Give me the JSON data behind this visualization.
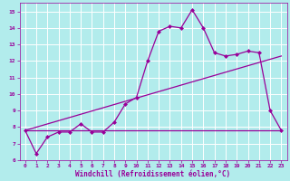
{
  "xlabel": "Windchill (Refroidissement éolien,°C)",
  "background_color": "#b2ecec",
  "grid_color": "#ffffff",
  "line_color": "#990099",
  "xlim": [
    -0.5,
    23.5
  ],
  "ylim": [
    6.0,
    15.5
  ],
  "yticks": [
    6,
    7,
    8,
    9,
    10,
    11,
    12,
    13,
    14,
    15
  ],
  "xticks": [
    0,
    1,
    2,
    3,
    4,
    5,
    6,
    7,
    8,
    9,
    10,
    11,
    12,
    13,
    14,
    15,
    16,
    17,
    18,
    19,
    20,
    21,
    22,
    23
  ],
  "curve1_x": [
    0,
    1,
    2,
    3,
    4,
    5,
    6,
    7,
    8,
    9,
    10,
    11,
    12,
    13,
    14,
    15,
    16,
    17,
    18,
    19,
    20,
    21,
    22,
    23
  ],
  "curve1_y": [
    7.8,
    6.4,
    7.4,
    7.7,
    7.7,
    8.2,
    7.7,
    7.7,
    8.3,
    9.4,
    9.8,
    12.0,
    13.8,
    14.1,
    14.0,
    15.1,
    14.0,
    12.5,
    12.3,
    12.4,
    12.6,
    12.5,
    9.0,
    7.8
  ],
  "flat_line_x": [
    0,
    23
  ],
  "flat_line_y": [
    7.8,
    7.8
  ],
  "diag_line_x": [
    0,
    23
  ],
  "diag_line_y": [
    7.8,
    12.3
  ],
  "marker": "D",
  "markersize": 2.0,
  "linewidth": 0.9,
  "tick_fontsize": 4.5,
  "xlabel_fontsize": 5.5
}
